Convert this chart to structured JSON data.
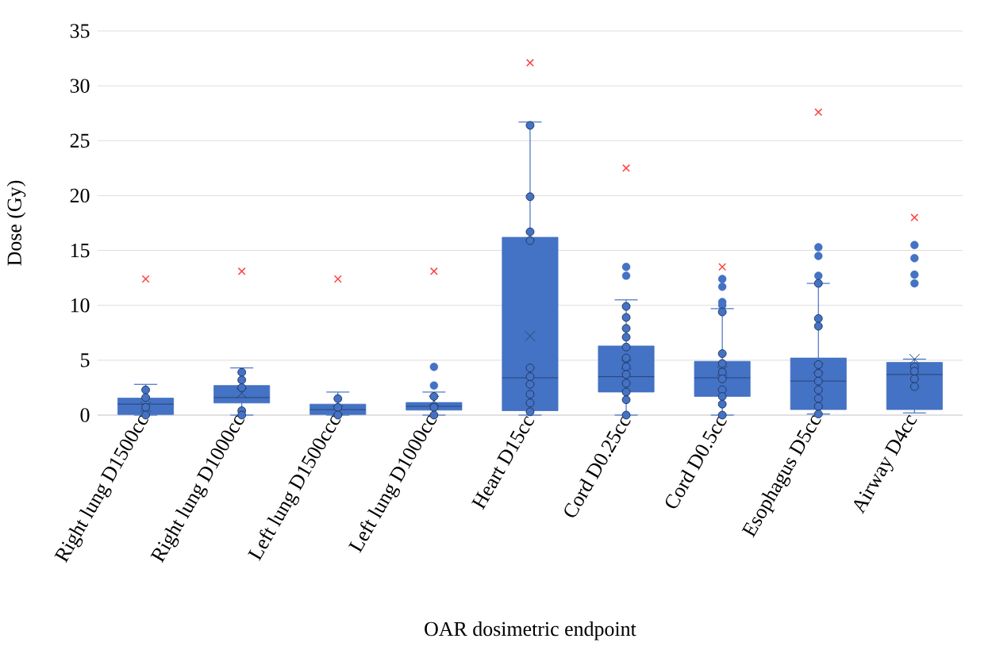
{
  "chart_data": {
    "type": "box",
    "ylabel": "Dose (Gy)",
    "xlabel": "OAR dosimetric endpoint",
    "categories": [
      "Right lung D1500cc",
      "Right lung D1000cc",
      "Left lung D1500ccc",
      "Left lung D1000cc",
      "Heart D15cc",
      "Cord D0.25cc",
      "Cord D0.5cc",
      "Esophagus D5cc",
      "Airway D4cc"
    ],
    "ylim": [
      0,
      35
    ],
    "yticks": [
      0,
      5,
      10,
      15,
      20,
      25,
      30,
      35
    ],
    "grid": "y",
    "series": [
      {
        "type": "box",
        "color": "#4472c4",
        "boxes": [
          {
            "low": 0,
            "q1": 0.05,
            "median": 1.0,
            "q3": 1.55,
            "high": 2.8,
            "mean": 0.75
          },
          {
            "low": 0,
            "q1": 1.1,
            "median": 1.6,
            "q3": 2.7,
            "high": 4.3,
            "mean": 2.0
          },
          {
            "low": 0,
            "q1": 0.05,
            "median": 0.5,
            "q3": 1.0,
            "high": 2.1,
            "mean": 0.45
          },
          {
            "low": 0,
            "q1": 0.45,
            "median": 0.8,
            "q3": 1.15,
            "high": 2.1,
            "mean": 1.3,
            "outliers": [
              2.7,
              4.4
            ]
          },
          {
            "low": 0,
            "q1": 0.4,
            "median": 3.4,
            "q3": 16.2,
            "high": 26.7,
            "mean": 7.2
          },
          {
            "low": 0,
            "q1": 2.1,
            "median": 3.5,
            "q3": 6.3,
            "high": 10.5,
            "mean": 4.6,
            "outliers": [
              12.7,
              13.5
            ]
          },
          {
            "low": 0,
            "q1": 1.7,
            "median": 3.4,
            "q3": 4.9,
            "high": 9.7,
            "mean": 4.0,
            "outliers": [
              10.0,
              10.3,
              11.7,
              12.4
            ]
          },
          {
            "low": 0.1,
            "q1": 0.5,
            "median": 3.1,
            "q3": 5.2,
            "high": 12.0,
            "mean": 4.3,
            "outliers": [
              12.7,
              14.5,
              15.3
            ]
          },
          {
            "low": 0.2,
            "q1": 0.5,
            "median": 3.7,
            "q3": 4.8,
            "high": 5.1,
            "mean": 5.1,
            "outliers": [
              12.0,
              12.8,
              14.3,
              15.5
            ]
          }
        ]
      },
      {
        "type": "scatter",
        "color": "#4472c4",
        "marker": "circle",
        "x": [
          "Right lung D1500cc",
          "Right lung D1500cc",
          "Right lung D1500cc",
          "Right lung D1500cc",
          "Right lung D1000cc",
          "Right lung D1000cc",
          "Right lung D1000cc",
          "Right lung D1000cc",
          "Right lung D1000cc",
          "Left lung D1500ccc",
          "Left lung D1500ccc",
          "Left lung D1500ccc",
          "Left lung D1000cc",
          "Left lung D1000cc",
          "Left lung D1000cc",
          "Heart D15cc",
          "Heart D15cc",
          "Heart D15cc",
          "Heart D15cc",
          "Heart D15cc",
          "Heart D15cc",
          "Heart D15cc",
          "Heart D15cc",
          "Heart D15cc",
          "Heart D15cc",
          "Cord D0.25cc",
          "Cord D0.25cc",
          "Cord D0.25cc",
          "Cord D0.25cc",
          "Cord D0.25cc",
          "Cord D0.25cc",
          "Cord D0.25cc",
          "Cord D0.25cc",
          "Cord D0.25cc",
          "Cord D0.25cc",
          "Cord D0.25cc",
          "Cord D0.25cc",
          "Cord D0.5cc",
          "Cord D0.5cc",
          "Cord D0.5cc",
          "Cord D0.5cc",
          "Cord D0.5cc",
          "Cord D0.5cc",
          "Cord D0.5cc",
          "Cord D0.5cc",
          "Cord D0.5cc",
          "Esophagus D5cc",
          "Esophagus D5cc",
          "Esophagus D5cc",
          "Esophagus D5cc",
          "Esophagus D5cc",
          "Esophagus D5cc",
          "Esophagus D5cc",
          "Esophagus D5cc",
          "Esophagus D5cc",
          "Esophagus D5cc",
          "Airway D4cc",
          "Airway D4cc",
          "Airway D4cc",
          "Airway D4cc"
        ],
        "values": [
          2.3,
          1.6,
          0.7,
          0,
          3.9,
          3.2,
          2.5,
          0.4,
          0,
          1.5,
          0.7,
          0,
          1.7,
          0.7,
          0,
          26.4,
          19.9,
          16.7,
          15.9,
          4.3,
          3.5,
          2.8,
          1.9,
          1.1,
          0.3,
          9.9,
          8.9,
          7.9,
          7.1,
          6.2,
          5.2,
          4.4,
          3.7,
          2.9,
          2.1,
          1.4,
          0,
          9.4,
          5.6,
          4.7,
          3.9,
          3.3,
          2.3,
          1.7,
          1.0,
          0,
          12.0,
          8.8,
          8.1,
          4.6,
          3.8,
          3.1,
          2.3,
          1.5,
          0.8,
          0.1,
          4.4,
          4.0,
          3.3,
          2.6
        ]
      },
      {
        "type": "scatter",
        "color": "#ff4040",
        "marker": "cross",
        "x": [
          "Right lung D1500cc",
          "Right lung D1000cc",
          "Left lung D1500ccc",
          "Left lung D1000cc",
          "Heart D15cc",
          "Cord D0.25cc",
          "Cord D0.5cc",
          "Esophagus D5cc",
          "Airway D4cc"
        ],
        "values": [
          12.4,
          13.1,
          12.4,
          13.1,
          32.1,
          22.5,
          13.5,
          27.6,
          18.0
        ]
      }
    ]
  }
}
